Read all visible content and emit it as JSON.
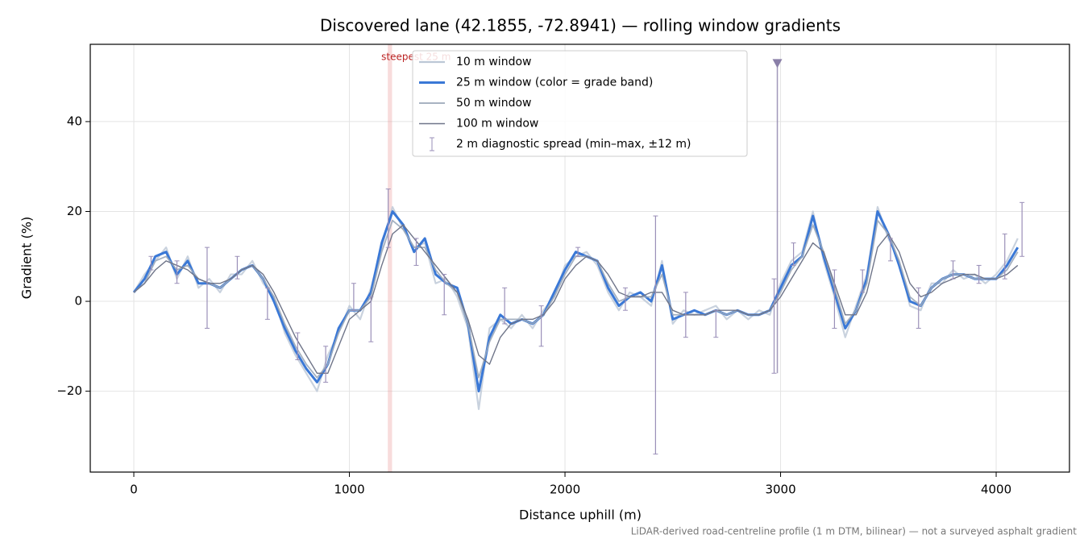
{
  "chart_data": {
    "type": "line",
    "title": "Discovered lane (42.1855, -72.8941) — rolling window gradients",
    "xlabel": "Distance uphill (m)",
    "ylabel": "Gradient (%)",
    "note": "LiDAR-derived road-centreline profile (1 m DTM, bilinear) — not a surveyed asphalt gradient",
    "xlim": [
      -202,
      4340
    ],
    "ylim": [
      -38,
      57.2
    ],
    "xticks": [
      0,
      1000,
      2000,
      3000,
      4000
    ],
    "yticks": [
      {
        "value": -20,
        "label": "−20"
      },
      0,
      20,
      40
    ],
    "grid": true,
    "legend": "upper center",
    "x": [
      0,
      50,
      100,
      150,
      200,
      250,
      300,
      350,
      400,
      450,
      500,
      550,
      600,
      650,
      700,
      750,
      800,
      850,
      900,
      950,
      1000,
      1050,
      1100,
      1150,
      1200,
      1250,
      1300,
      1350,
      1400,
      1450,
      1500,
      1550,
      1600,
      1650,
      1700,
      1750,
      1800,
      1850,
      1900,
      1950,
      2000,
      2050,
      2100,
      2150,
      2200,
      2250,
      2300,
      2350,
      2400,
      2450,
      2500,
      2550,
      2600,
      2650,
      2700,
      2750,
      2800,
      2850,
      2900,
      2950,
      3000,
      3050,
      3100,
      3150,
      3200,
      3250,
      3300,
      3350,
      3400,
      3450,
      3500,
      3550,
      3600,
      3650,
      3700,
      3750,
      3800,
      3850,
      3900,
      3950,
      4000,
      4050,
      4100
    ],
    "series": [
      {
        "name": "10 m window",
        "color": "#bcc7d6",
        "values": [
          2,
          6,
          9,
          12,
          5,
          10,
          3,
          5,
          2,
          6,
          6,
          9,
          4,
          1,
          -7,
          -12,
          -16,
          -20,
          -12,
          -7,
          -1,
          -4,
          3,
          12,
          21,
          16,
          12,
          13,
          4,
          5,
          1,
          -6,
          -24,
          -6,
          -4,
          -6,
          -3,
          -6,
          -2,
          1,
          8,
          10,
          11,
          8,
          2,
          -2,
          2,
          1,
          -1,
          9,
          -5,
          -2,
          -3,
          -2,
          -1,
          -4,
          -2,
          -4,
          -2,
          -3,
          4,
          9,
          11,
          20,
          9,
          1,
          -8,
          -1,
          6,
          21,
          14,
          9,
          -1,
          -2,
          4,
          4,
          7,
          5,
          6,
          4,
          6,
          9,
          14
        ]
      },
      {
        "name": "25 m window (color = grade band)",
        "color": "#3a78d6",
        "values": [
          2,
          5,
          10,
          11,
          6,
          9,
          4,
          4,
          3,
          5,
          7,
          8,
          5,
          0,
          -6,
          -11,
          -15,
          -18,
          -14,
          -6,
          -2,
          -2,
          2,
          13,
          20,
          17,
          11,
          14,
          6,
          4,
          3,
          -5,
          -20,
          -8,
          -3,
          -5,
          -4,
          -5,
          -3,
          2,
          7,
          11,
          10,
          9,
          3,
          -1,
          1,
          2,
          0,
          8,
          -4,
          -3,
          -2,
          -3,
          -2,
          -3,
          -2,
          -3,
          -3,
          -2,
          3,
          8,
          10,
          19,
          10,
          2,
          -6,
          -2,
          5,
          20,
          15,
          8,
          0,
          -1,
          3,
          5,
          6,
          6,
          5,
          5,
          5,
          8,
          12
        ]
      },
      {
        "name": "50 m window",
        "color": "#9ba8ba",
        "values": [
          2,
          4,
          9,
          10,
          7,
          8,
          5,
          4,
          3,
          5,
          7,
          8,
          5,
          1,
          -5,
          -10,
          -14,
          -17,
          -14,
          -7,
          -2,
          -2,
          1,
          11,
          18,
          16,
          12,
          12,
          7,
          4,
          2,
          -5,
          -17,
          -9,
          -4,
          -4,
          -4,
          -5,
          -3,
          1,
          6,
          10,
          10,
          9,
          4,
          0,
          1,
          1,
          1,
          6,
          -3,
          -3,
          -3,
          -3,
          -2,
          -3,
          -2,
          -3,
          -3,
          -2,
          2,
          7,
          10,
          17,
          11,
          3,
          -5,
          -2,
          4,
          18,
          15,
          9,
          1,
          -1,
          3,
          5,
          6,
          6,
          5,
          5,
          5,
          7,
          11
        ]
      },
      {
        "name": "100 m window",
        "color": "#6f7589",
        "values": [
          2,
          4,
          7,
          9,
          8,
          7,
          5,
          4,
          4,
          5,
          7,
          8,
          6,
          2,
          -3,
          -8,
          -12,
          -16,
          -16,
          -10,
          -4,
          -2,
          0,
          8,
          15,
          17,
          14,
          11,
          8,
          5,
          2,
          -4,
          -12,
          -14,
          -8,
          -5,
          -4,
          -4,
          -3,
          0,
          5,
          8,
          10,
          9,
          6,
          2,
          1,
          1,
          2,
          2,
          -2,
          -3,
          -3,
          -3,
          -2,
          -2,
          -2,
          -3,
          -3,
          -2,
          1,
          5,
          9,
          13,
          11,
          4,
          -3,
          -3,
          2,
          12,
          15,
          11,
          4,
          1,
          2,
          4,
          5,
          6,
          6,
          5,
          5,
          6,
          8
        ]
      }
    ],
    "errorbars": {
      "name": "2 m diagnostic spread (min–max, ±12 m)",
      "color": "#9a8fb8",
      "x": [
        80,
        200,
        340,
        480,
        620,
        760,
        890,
        1020,
        1100,
        1180,
        1310,
        1440,
        1720,
        1890,
        2060,
        2280,
        2420,
        2560,
        2700,
        2970,
        3060,
        3250,
        3380,
        3510,
        3640,
        3800,
        3920,
        4040,
        4120
      ],
      "min": [
        7,
        4,
        -6,
        5,
        -4,
        -13,
        -18,
        -2,
        -9,
        12,
        8,
        -3,
        -5,
        -10,
        10,
        -2,
        -34,
        -8,
        -8,
        -16,
        8,
        -6,
        2,
        9,
        -6,
        5,
        4,
        5,
        10
      ],
      "max": [
        10,
        9,
        12,
        10,
        3,
        -7,
        -10,
        4,
        1,
        25,
        14,
        6,
        3,
        -1,
        12,
        3,
        19,
        2,
        -2,
        5,
        13,
        7,
        7,
        14,
        3,
        9,
        8,
        15,
        22
      ]
    },
    "steepest": {
      "label": "steepest 25 m",
      "range": [
        1178,
        1198
      ],
      "color": "#e88a8a"
    },
    "marker": {
      "x": 2985,
      "y": 53,
      "color": "#8a7fa8"
    }
  }
}
